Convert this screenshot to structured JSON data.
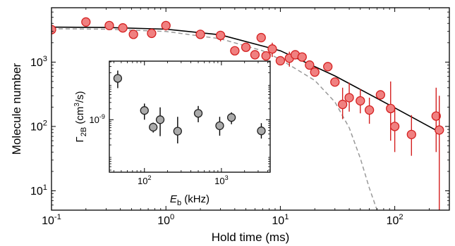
{
  "chart_data": [
    {
      "name": "main-chart",
      "type": "scatter",
      "xlabel": "Hold time (ms)",
      "ylabel": "Molecule number",
      "xscale": "log",
      "yscale": "log",
      "xlim": [
        0.1,
        300
      ],
      "ylim": [
        5,
        7000
      ],
      "x_ticks": [
        {
          "value": 0.1,
          "base": "10",
          "exp": "-1"
        },
        {
          "value": 1,
          "base": "10",
          "exp": "0"
        },
        {
          "value": 10,
          "base": "10",
          "exp": "1"
        },
        {
          "value": 100,
          "base": "10",
          "exp": "2"
        }
      ],
      "y_ticks": [
        {
          "value": 10,
          "base": "10",
          "exp": "1"
        },
        {
          "value": 100,
          "base": "10",
          "exp": "2"
        },
        {
          "value": 1000,
          "base": "10",
          "exp": "3"
        }
      ],
      "grid": false,
      "marker_color": "#f08080",
      "marker_edge": "#d42020",
      "errorbar_color": "#d42020",
      "points": [
        {
          "x": 0.1,
          "y": 3200
        },
        {
          "x": 0.2,
          "y": 4200
        },
        {
          "x": 0.32,
          "y": 3700
        },
        {
          "x": 0.42,
          "y": 3400
        },
        {
          "x": 0.52,
          "y": 2700
        },
        {
          "x": 0.75,
          "y": 2800
        },
        {
          "x": 1.0,
          "y": 3700,
          "lo": 3100,
          "hi": 4300
        },
        {
          "x": 2.0,
          "y": 2700
        },
        {
          "x": 3.0,
          "y": 2600,
          "lo": 2100,
          "hi": 3000
        },
        {
          "x": 4.0,
          "y": 1500
        },
        {
          "x": 5.0,
          "y": 1700
        },
        {
          "x": 6.0,
          "y": 1300
        },
        {
          "x": 6.8,
          "y": 2400
        },
        {
          "x": 7.5,
          "y": 1250
        },
        {
          "x": 8.5,
          "y": 1600,
          "lo": 1200,
          "hi": 2000
        },
        {
          "x": 10.0,
          "y": 1050
        },
        {
          "x": 12.0,
          "y": 1150,
          "lo": 850,
          "hi": 1450
        },
        {
          "x": 13.5,
          "y": 1300
        },
        {
          "x": 15.5,
          "y": 1200
        },
        {
          "x": 18.0,
          "y": 900
        },
        {
          "x": 20.0,
          "y": 700
        },
        {
          "x": 26.0,
          "y": 850
        },
        {
          "x": 30.0,
          "y": 490
        },
        {
          "x": 35.0,
          "y": 220,
          "lo": 130,
          "hi": 400
        },
        {
          "x": 40.0,
          "y": 280,
          "lo": 170,
          "hi": 480
        },
        {
          "x": 50.0,
          "y": 250,
          "lo": 160,
          "hi": 380
        },
        {
          "x": 60.0,
          "y": 180,
          "lo": 110,
          "hi": 280
        },
        {
          "x": 75.0,
          "y": 310
        },
        {
          "x": 92.0,
          "y": 190,
          "lo": 60,
          "hi": 500
        },
        {
          "x": 100.0,
          "y": 100,
          "lo": 40,
          "hi": 200
        },
        {
          "x": 140.0,
          "y": 75,
          "lo": 35,
          "hi": 150
        },
        {
          "x": 230.0,
          "y": 145,
          "lo": 40,
          "hi": 400
        },
        {
          "x": 245.0,
          "y": 88,
          "lo": 5,
          "hi": 300
        }
      ],
      "solid_fit": {
        "color": "#000000",
        "points": [
          [
            0.1,
            3500
          ],
          [
            0.3,
            3450
          ],
          [
            1,
            3250
          ],
          [
            3,
            2650
          ],
          [
            10,
            1500
          ],
          [
            30,
            610
          ],
          [
            100,
            195
          ],
          [
            245,
            82
          ]
        ]
      },
      "dashed_fit": {
        "color": "#999999",
        "points": [
          [
            0.1,
            3300
          ],
          [
            0.3,
            3250
          ],
          [
            1,
            3000
          ],
          [
            3,
            2300
          ],
          [
            7,
            1500
          ],
          [
            10,
            1100
          ],
          [
            20,
            520
          ],
          [
            30,
            240
          ],
          [
            40,
            95
          ],
          [
            50,
            32
          ],
          [
            60,
            11
          ],
          [
            70,
            5
          ]
        ]
      }
    },
    {
      "name": "inset-chart",
      "type": "scatter",
      "xlabel_var": "E",
      "xlabel_sub": "b",
      "xlabel_unit": " (kHz)",
      "ylabel_var": "Γ",
      "ylabel_sub": "2B",
      "ylabel_unit_pre": " (cm",
      "ylabel_unit_sup": "3",
      "ylabel_unit_post": "/s)",
      "xscale": "log",
      "yscale": "log",
      "xlim": [
        35,
        4300
      ],
      "ylim": [
        3.5e-11,
        4.2e-08
      ],
      "x_ticks": [
        {
          "value": 100,
          "base": "10",
          "exp": "2"
        },
        {
          "value": 1000,
          "base": "10",
          "exp": "3"
        }
      ],
      "y_ticks": [
        {
          "value": 1e-09,
          "base": "10",
          "exp": "-9"
        }
      ],
      "grid": false,
      "marker_color": "#aaaaaa",
      "marker_edge": "#222222",
      "errorbar_color": "#000000",
      "points": [
        {
          "x": 45,
          "y": 1.4e-08,
          "lo": 7.5e-09,
          "hi": 2.3e-08
        },
        {
          "x": 100,
          "y": 1.8e-09,
          "lo": 1e-09,
          "hi": 2.8e-09
        },
        {
          "x": 130,
          "y": 6.2e-10,
          "lo": 4.4e-10,
          "hi": 8.3e-10
        },
        {
          "x": 160,
          "y": 1e-09,
          "lo": 3.5e-10,
          "hi": 2.2e-09
        },
        {
          "x": 270,
          "y": 4.8e-10,
          "lo": 2.2e-10,
          "hi": 1.2e-09
        },
        {
          "x": 500,
          "y": 1.5e-09,
          "lo": 8.5e-10,
          "hi": 2.4e-09
        },
        {
          "x": 950,
          "y": 6.8e-10,
          "lo": 3.6e-10,
          "hi": 1.2e-09
        },
        {
          "x": 1350,
          "y": 1.15e-09,
          "lo": 7.5e-10,
          "hi": 1.6e-09
        },
        {
          "x": 3300,
          "y": 4.9e-10,
          "lo": 3e-10,
          "hi": 8e-10
        }
      ]
    }
  ]
}
